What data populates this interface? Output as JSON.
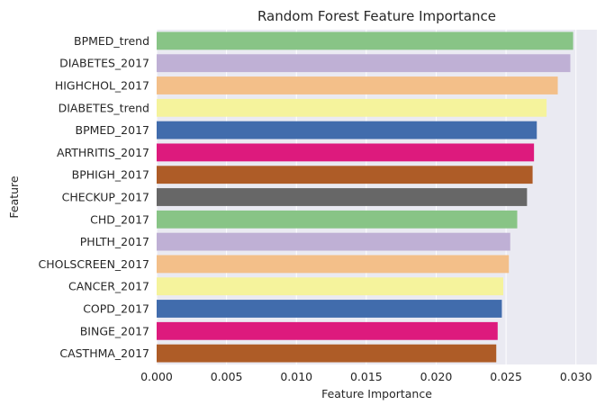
{
  "chart_data": {
    "type": "bar",
    "orientation": "horizontal",
    "title": "Random Forest Feature Importance",
    "xlabel": "Feature Importance",
    "ylabel": "Feature",
    "xlim": [
      0,
      0.0315
    ],
    "xticks": [
      "0.000",
      "0.005",
      "0.010",
      "0.015",
      "0.020",
      "0.025",
      "0.030"
    ],
    "xtick_values": [
      0,
      0.005,
      0.01,
      0.015,
      0.02,
      0.025,
      0.03
    ],
    "grid": true,
    "categories": [
      "BPMED_trend",
      "DIABETES_2017",
      "HIGHCHOL_2017",
      "DIABETES_trend",
      "BPMED_2017",
      "ARTHRITIS_2017",
      "BPHIGH_2017",
      "CHECKUP_2017",
      "CHD_2017",
      "PHLTH_2017",
      "CHOLSCREEN_2017",
      "CANCER_2017",
      "COPD_2017",
      "BINGE_2017",
      "CASTHMA_2017"
    ],
    "values": [
      0.0298,
      0.0296,
      0.0287,
      0.0279,
      0.0272,
      0.027,
      0.0269,
      0.0265,
      0.0258,
      0.0253,
      0.0252,
      0.0248,
      0.0247,
      0.0244,
      0.0243
    ],
    "colors": [
      "#88c486",
      "#bfb0d5",
      "#f3bf89",
      "#f5f39c",
      "#416cac",
      "#dd1a7d",
      "#ae5c27",
      "#676767",
      "#88c486",
      "#bfb0d5",
      "#f3bf89",
      "#f5f39c",
      "#416cac",
      "#dd1a7d",
      "#ae5c27"
    ],
    "background": "#eaeaf2"
  }
}
